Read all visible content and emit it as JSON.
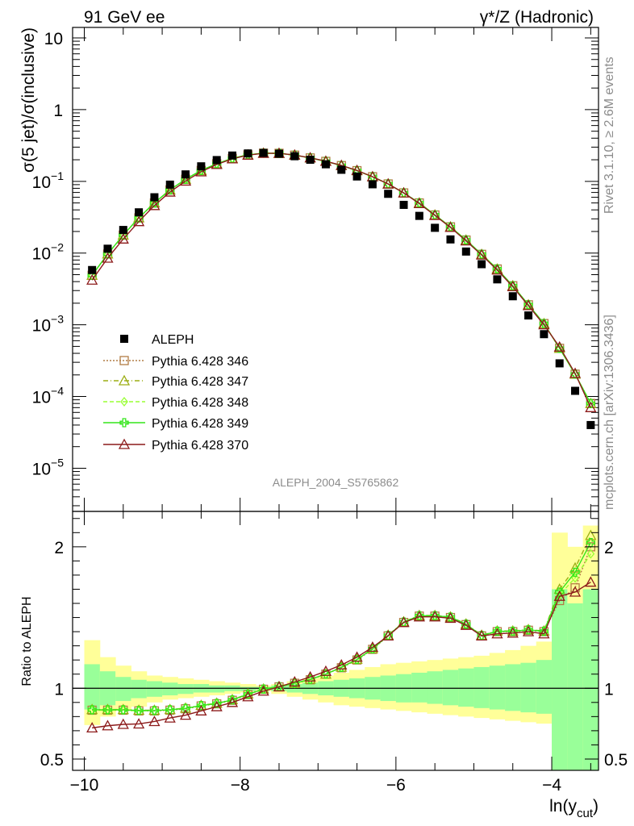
{
  "header": {
    "left_title": "91 GeV ee",
    "right_title": "γ*/Z (Hadronic)"
  },
  "side_text": {
    "rivet": "Rivet 3.1.10, ≥ 2.6M events",
    "mcplots": "mcplots.cern.ch [arXiv:1306.3436]"
  },
  "analysis_label": "ALEPH_2004_S5765862",
  "colors": {
    "data": "#000000",
    "p346": "#b27d45",
    "p347": "#9cad14",
    "p348": "#99ff33",
    "p349": "#33e61a",
    "p370": "#8c1a1a",
    "band_outer": "#ffff99",
    "band_inner": "#99ff99"
  },
  "chart_data": [
    {
      "type": "scatter",
      "panel": "main",
      "ylabel": "σ(5 jet)/σ(inclusive)",
      "ylog": true,
      "xlim": [
        -10.15,
        -3.4
      ],
      "ylim": [
        2.5e-06,
        14
      ],
      "yticks": [
        {
          "v": 10,
          "label": "10"
        },
        {
          "v": 1,
          "label": "1"
        },
        {
          "v": 0.1,
          "label": "10",
          "exp": "−1"
        },
        {
          "v": 0.01,
          "label": "10",
          "exp": "−2"
        },
        {
          "v": 0.001,
          "label": "10",
          "exp": "−3"
        },
        {
          "v": 0.0001,
          "label": "10",
          "exp": "−4"
        },
        {
          "v": 1e-05,
          "label": "10",
          "exp": "−5"
        }
      ],
      "legend_position": "lower-left",
      "x": [
        -9.9,
        -9.7,
        -9.5,
        -9.3,
        -9.1,
        -8.9,
        -8.7,
        -8.5,
        -8.3,
        -8.1,
        -7.9,
        -7.7,
        -7.5,
        -7.3,
        -7.1,
        -6.9,
        -6.7,
        -6.5,
        -6.3,
        -6.1,
        -5.9,
        -5.7,
        -5.5,
        -5.3,
        -5.1,
        -4.9,
        -4.7,
        -4.5,
        -4.3,
        -4.1,
        -3.9,
        -3.7,
        -3.5
      ],
      "series": [
        {
          "name": "ALEPH",
          "key": "data",
          "marker": "square",
          "values": [
            0.0058,
            0.0115,
            0.021,
            0.037,
            0.06,
            0.09,
            0.125,
            0.162,
            0.198,
            0.229,
            0.245,
            0.249,
            0.243,
            0.224,
            0.2,
            0.173,
            0.145,
            0.117,
            0.091,
            0.067,
            0.047,
            0.033,
            0.0225,
            0.0155,
            0.0105,
            0.007,
            0.0043,
            0.0025,
            0.00135,
            0.00074,
            0.00029,
            0.00012,
            4e-05
          ]
        },
        {
          "name": "Pythia 6.428 346",
          "key": "p346",
          "marker": "open-square",
          "dash": "2,2",
          "values": [
            0.0049,
            0.0097,
            0.0178,
            0.031,
            0.05,
            0.076,
            0.107,
            0.142,
            0.176,
            0.209,
            0.234,
            0.247,
            0.246,
            0.232,
            0.212,
            0.19,
            0.166,
            0.141,
            0.116,
            0.092,
            0.069,
            0.05,
            0.034,
            0.0232,
            0.0152,
            0.0096,
            0.006,
            0.0035,
            0.0019,
            0.00104,
            0.00047,
            0.000205,
            8e-05
          ]
        },
        {
          "name": "Pythia 6.428 347",
          "key": "p347",
          "marker": "open-triangle",
          "dash": "6,3,1,3",
          "values": [
            0.0049,
            0.0097,
            0.0178,
            0.031,
            0.05,
            0.076,
            0.107,
            0.142,
            0.176,
            0.209,
            0.234,
            0.247,
            0.246,
            0.232,
            0.212,
            0.19,
            0.166,
            0.141,
            0.116,
            0.092,
            0.069,
            0.05,
            0.034,
            0.0232,
            0.0152,
            0.0096,
            0.006,
            0.0035,
            0.0019,
            0.00104,
            0.00047,
            0.000205,
            8e-05
          ]
        },
        {
          "name": "Pythia 6.428 348",
          "key": "p348",
          "marker": "open-diamond",
          "dash": "5,3",
          "values": [
            0.0049,
            0.0097,
            0.0178,
            0.031,
            0.05,
            0.076,
            0.107,
            0.142,
            0.176,
            0.209,
            0.234,
            0.247,
            0.246,
            0.232,
            0.212,
            0.19,
            0.166,
            0.141,
            0.116,
            0.092,
            0.069,
            0.05,
            0.034,
            0.0232,
            0.0152,
            0.0096,
            0.006,
            0.0035,
            0.0019,
            0.00104,
            0.00047,
            0.000205,
            8e-05
          ]
        },
        {
          "name": "Pythia 6.428 349",
          "key": "p349",
          "marker": "open-cross",
          "dash": "",
          "values": [
            0.0049,
            0.0097,
            0.0178,
            0.031,
            0.05,
            0.076,
            0.107,
            0.142,
            0.176,
            0.209,
            0.234,
            0.247,
            0.246,
            0.232,
            0.212,
            0.19,
            0.166,
            0.141,
            0.116,
            0.092,
            0.069,
            0.05,
            0.034,
            0.0232,
            0.0152,
            0.0096,
            0.006,
            0.0035,
            0.0019,
            0.00104,
            0.00047,
            0.000205,
            8e-05
          ]
        },
        {
          "name": "Pythia 6.428 370",
          "key": "p370",
          "marker": "open-triangle",
          "dash": "",
          "values": [
            0.0042,
            0.0085,
            0.0157,
            0.0275,
            0.046,
            0.071,
            0.101,
            0.136,
            0.172,
            0.206,
            0.232,
            0.246,
            0.246,
            0.233,
            0.213,
            0.191,
            0.167,
            0.142,
            0.116,
            0.092,
            0.069,
            0.049,
            0.0335,
            0.0228,
            0.0148,
            0.0094,
            0.0058,
            0.0034,
            0.00185,
            0.001,
            0.00049,
            0.00021,
            7e-05
          ]
        }
      ]
    },
    {
      "type": "scatter",
      "panel": "ratio",
      "ylabel": "Ratio to ALEPH",
      "xlabel": "ln(y",
      "xlabel_sub": "cut",
      "xlabel_close": ")",
      "xlim": [
        -10.15,
        -3.4
      ],
      "ylim": [
        0.42,
        2.25
      ],
      "xticks": [
        {
          "v": -10,
          "label": "−10"
        },
        {
          "v": -8,
          "label": "−8"
        },
        {
          "v": -6,
          "label": "−6"
        },
        {
          "v": -4,
          "label": "−4"
        }
      ],
      "yticks": [
        {
          "v": 2,
          "label": "2"
        },
        {
          "v": 1,
          "label": "1"
        },
        {
          "v": 0.5,
          "label": "0.5"
        }
      ],
      "x": [
        -9.9,
        -9.7,
        -9.5,
        -9.3,
        -9.1,
        -8.9,
        -8.7,
        -8.5,
        -8.3,
        -8.1,
        -7.9,
        -7.7,
        -7.5,
        -7.3,
        -7.1,
        -6.9,
        -6.7,
        -6.5,
        -6.3,
        -6.1,
        -5.9,
        -5.7,
        -5.5,
        -5.3,
        -5.1,
        -4.9,
        -4.7,
        -4.5,
        -4.3,
        -4.1,
        -3.9,
        -3.7,
        -3.5
      ],
      "band_edges": [
        -10.0,
        -9.8,
        -9.6,
        -9.4,
        -9.2,
        -9.0,
        -8.8,
        -8.6,
        -8.4,
        -8.2,
        -8.0,
        -7.8,
        -7.6,
        -7.4,
        -7.2,
        -7.0,
        -6.8,
        -6.6,
        -6.4,
        -6.2,
        -6.0,
        -5.8,
        -5.6,
        -5.4,
        -5.2,
        -5.0,
        -4.8,
        -4.6,
        -4.4,
        -4.2,
        -4.0,
        -3.8,
        -3.6,
        -3.4
      ],
      "band_outer_hi": [
        1.34,
        1.22,
        1.16,
        1.12,
        1.09,
        1.08,
        1.07,
        1.06,
        1.05,
        1.04,
        1.03,
        1.02,
        1.03,
        1.05,
        1.07,
        1.09,
        1.11,
        1.13,
        1.15,
        1.17,
        1.18,
        1.19,
        1.2,
        1.21,
        1.22,
        1.23,
        1.25,
        1.27,
        1.3,
        1.33,
        2.1,
        2.0,
        2.15
      ],
      "band_outer_lo": [
        0.74,
        0.8,
        0.84,
        0.87,
        0.9,
        0.92,
        0.93,
        0.94,
        0.95,
        0.96,
        0.97,
        0.98,
        0.96,
        0.94,
        0.92,
        0.9,
        0.88,
        0.87,
        0.86,
        0.85,
        0.84,
        0.83,
        0.82,
        0.81,
        0.8,
        0.79,
        0.78,
        0.77,
        0.76,
        0.75,
        0.42,
        0.42,
        0.42
      ],
      "band_inner_hi": [
        1.17,
        1.12,
        1.08,
        1.06,
        1.05,
        1.04,
        1.03,
        1.03,
        1.02,
        1.02,
        1.01,
        1.01,
        1.02,
        1.03,
        1.04,
        1.05,
        1.06,
        1.07,
        1.08,
        1.09,
        1.1,
        1.11,
        1.12,
        1.13,
        1.14,
        1.15,
        1.16,
        1.17,
        1.18,
        1.2,
        1.7,
        1.6,
        1.7
      ],
      "band_inner_lo": [
        0.85,
        0.88,
        0.91,
        0.93,
        0.94,
        0.95,
        0.96,
        0.97,
        0.97,
        0.98,
        0.98,
        0.99,
        0.98,
        0.97,
        0.96,
        0.95,
        0.94,
        0.93,
        0.92,
        0.91,
        0.9,
        0.9,
        0.89,
        0.88,
        0.87,
        0.86,
        0.85,
        0.84,
        0.83,
        0.82,
        0.42,
        0.42,
        0.42
      ],
      "series": [
        {
          "name": "Pythia 6.428 346",
          "key": "p346",
          "marker": "open-square",
          "dash": "2,2",
          "values": [
            0.845,
            0.845,
            0.845,
            0.84,
            0.84,
            0.845,
            0.855,
            0.875,
            0.89,
            0.915,
            0.955,
            0.993,
            1.01,
            1.035,
            1.06,
            1.1,
            1.145,
            1.2,
            1.275,
            1.37,
            1.465,
            1.51,
            1.51,
            1.5,
            1.45,
            1.37,
            1.4,
            1.4,
            1.41,
            1.4,
            1.62,
            1.71,
            2.0
          ]
        },
        {
          "name": "Pythia 6.428 347",
          "key": "p347",
          "marker": "open-triangle",
          "dash": "6,3,1,3",
          "values": [
            0.85,
            0.85,
            0.85,
            0.845,
            0.845,
            0.85,
            0.86,
            0.88,
            0.895,
            0.92,
            0.96,
            0.995,
            1.012,
            1.035,
            1.065,
            1.1,
            1.15,
            1.205,
            1.28,
            1.375,
            1.47,
            1.515,
            1.515,
            1.505,
            1.455,
            1.375,
            1.405,
            1.405,
            1.415,
            1.405,
            1.7,
            1.85,
            2.08
          ]
        },
        {
          "name": "Pythia 6.428 348",
          "key": "p348",
          "marker": "open-diamond",
          "dash": "5,3",
          "values": [
            0.845,
            0.845,
            0.845,
            0.84,
            0.842,
            0.848,
            0.858,
            0.876,
            0.892,
            0.918,
            0.957,
            0.994,
            1.011,
            1.034,
            1.062,
            1.1,
            1.147,
            1.203,
            1.278,
            1.372,
            1.467,
            1.512,
            1.512,
            1.502,
            1.452,
            1.372,
            1.402,
            1.402,
            1.412,
            1.402,
            1.66,
            1.78,
            1.95
          ]
        },
        {
          "name": "Pythia 6.428 349",
          "key": "p349",
          "marker": "open-cross",
          "dash": "",
          "values": [
            0.848,
            0.848,
            0.848,
            0.843,
            0.843,
            0.848,
            0.858,
            0.878,
            0.893,
            0.918,
            0.958,
            0.994,
            1.011,
            1.036,
            1.063,
            1.1,
            1.148,
            1.203,
            1.278,
            1.373,
            1.468,
            1.513,
            1.513,
            1.503,
            1.453,
            1.373,
            1.403,
            1.403,
            1.413,
            1.403,
            1.68,
            1.82,
            2.03
          ]
        },
        {
          "name": "Pythia 6.428 370",
          "key": "p370",
          "marker": "open-triangle",
          "dash": "",
          "values": [
            0.72,
            0.735,
            0.745,
            0.748,
            0.765,
            0.79,
            0.81,
            0.84,
            0.87,
            0.9,
            0.94,
            0.98,
            1.01,
            1.045,
            1.08,
            1.12,
            1.165,
            1.22,
            1.29,
            1.37,
            1.465,
            1.505,
            1.505,
            1.495,
            1.445,
            1.37,
            1.385,
            1.39,
            1.4,
            1.385,
            1.65,
            1.68,
            1.75
          ]
        }
      ]
    }
  ]
}
